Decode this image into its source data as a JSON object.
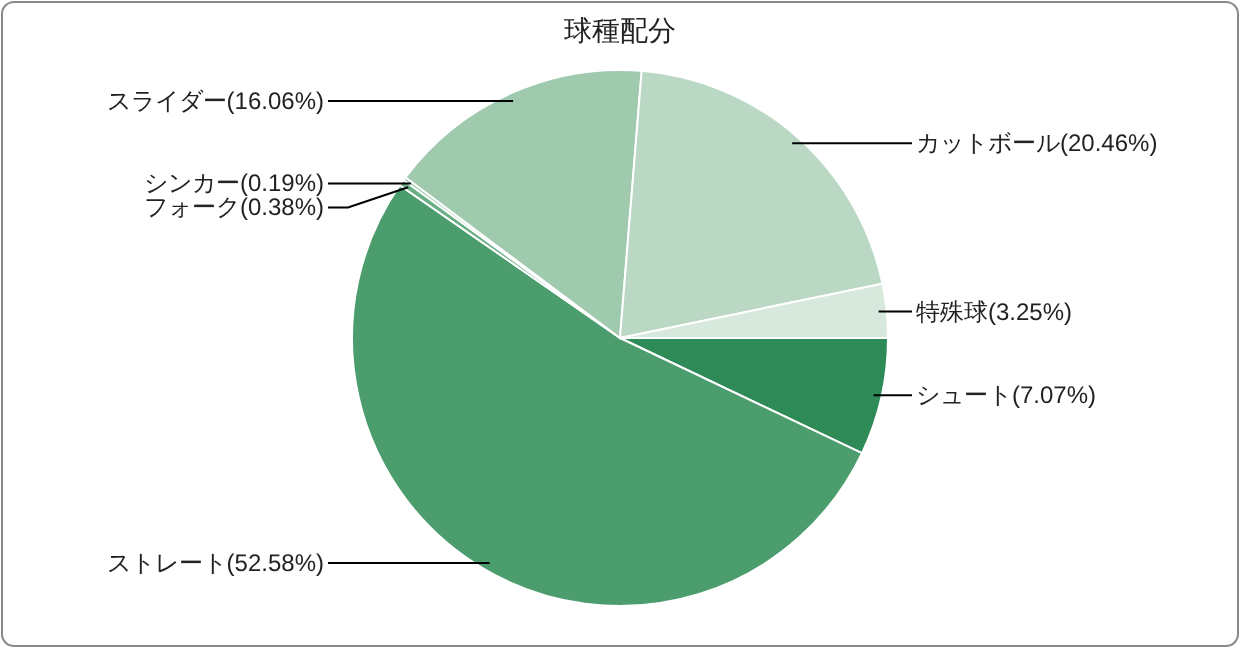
{
  "chart_data": {
    "type": "pie",
    "title": "球種配分",
    "categories": [
      "シュート",
      "ストレート",
      "フォーク",
      "シンカー",
      "スライダー",
      "カットボール",
      "特殊球"
    ],
    "values": [
      7.07,
      52.58,
      0.38,
      0.19,
      16.06,
      20.46,
      3.25
    ],
    "value_labels": [
      "(7.07%)",
      "(52.58%)",
      "(0.38%)",
      "(0.19%)",
      "(16.06%)",
      "(20.46%)",
      "(3.25%)"
    ],
    "colors": [
      "#2e8b57",
      "#4b9d6e",
      "#6aae85",
      "#88c09e",
      "#9fcaae",
      "#bad8c4",
      "#d7e8dc"
    ]
  }
}
